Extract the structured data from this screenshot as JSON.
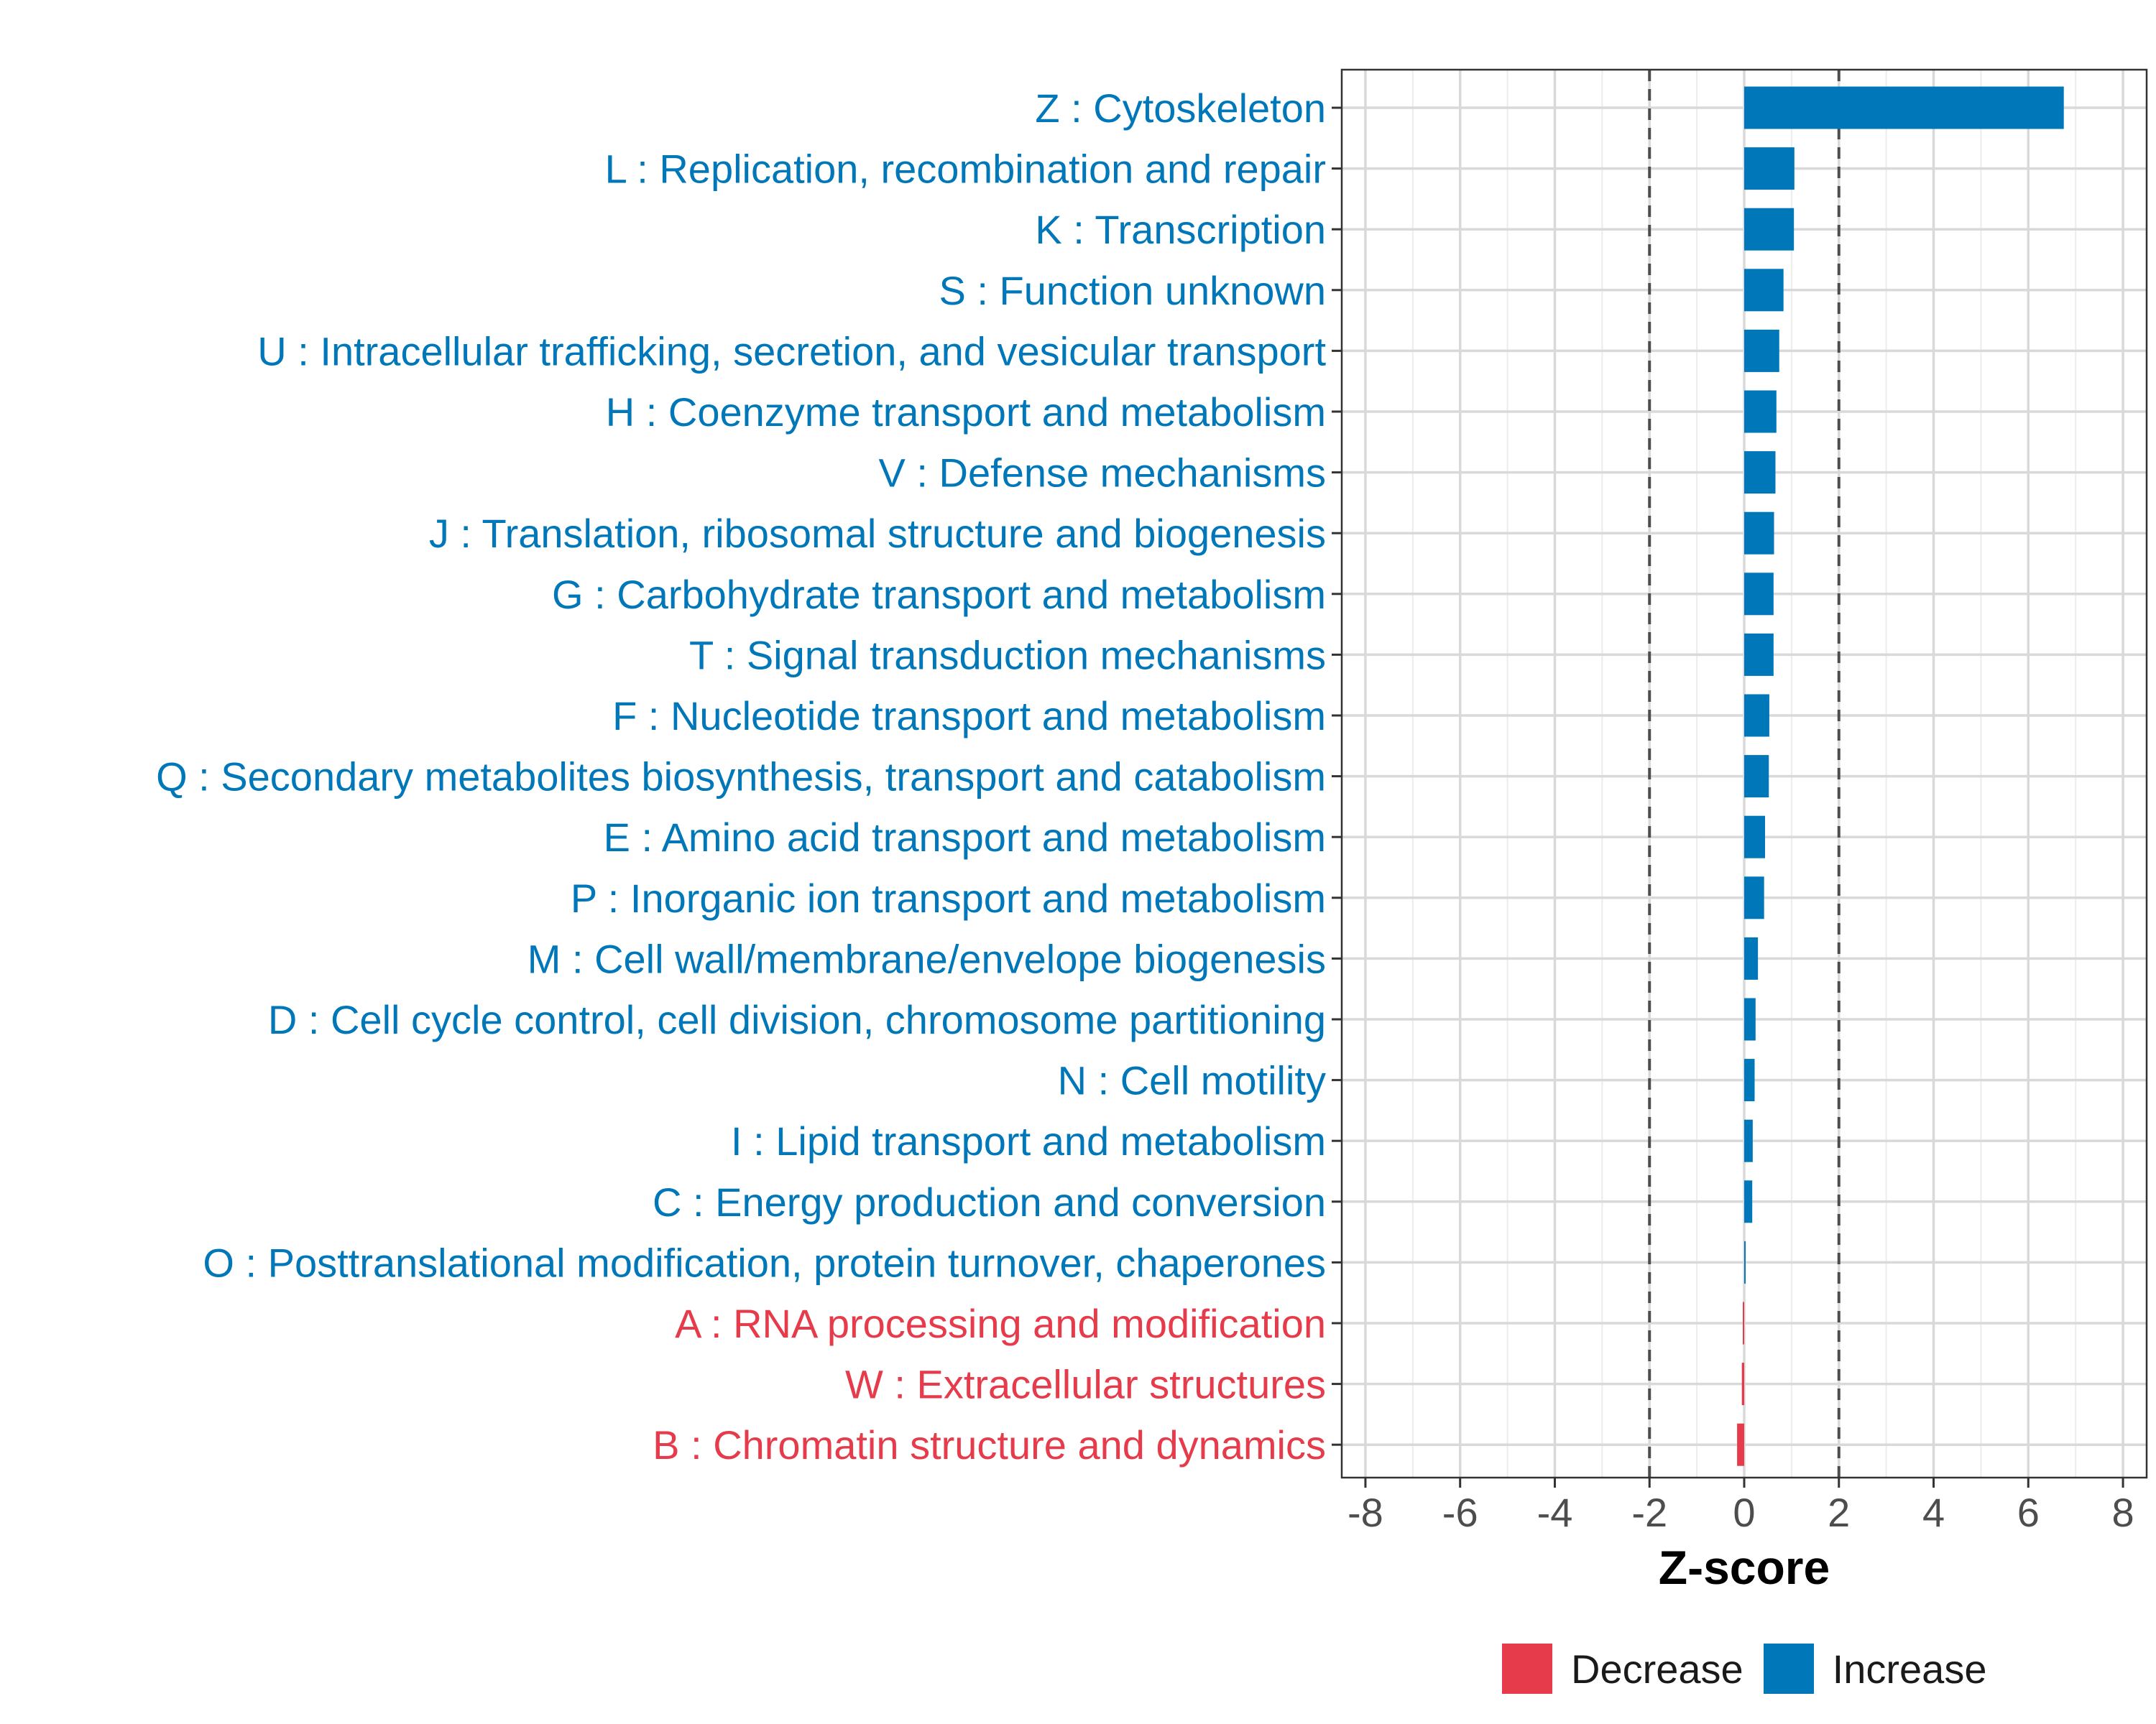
{
  "chart_data": {
    "type": "bar",
    "orientation": "horizontal",
    "xlabel": "Z-score",
    "xlim": [
      -8.5,
      8.5
    ],
    "x_ticks": [
      -8,
      -6,
      -4,
      -2,
      0,
      2,
      4,
      6,
      8
    ],
    "x_tick_labels": [
      "-8",
      "-6",
      "-4",
      "-2",
      "0",
      "2",
      "4",
      "6",
      "8"
    ],
    "threshold_lines": [
      -2,
      2
    ],
    "grid": true,
    "legend_position": "bottom",
    "colors": {
      "Decrease": "#e63b4a",
      "Increase": "#0077b8"
    },
    "categories": [
      "Z : Cytoskeleton",
      "L : Replication, recombination and repair",
      "K : Transcription",
      "S : Function unknown",
      "U : Intracellular trafficking, secretion, and vesicular transport",
      "H : Coenzyme transport and metabolism",
      "V : Defense mechanisms",
      "J : Translation, ribosomal structure and biogenesis",
      "G : Carbohydrate transport and metabolism",
      "T : Signal transduction mechanisms",
      "F : Nucleotide transport and metabolism",
      "Q : Secondary metabolites biosynthesis, transport and catabolism",
      "E : Amino acid transport and metabolism",
      "P : Inorganic ion transport and metabolism",
      "M : Cell wall/membrane/envelope biogenesis",
      "D : Cell cycle control, cell division, chromosome partitioning",
      "N : Cell motility",
      "I : Lipid transport and metabolism",
      "C : Energy production and conversion",
      "O : Posttranslational modification, protein turnover, chaperones",
      "A : RNA processing and modification",
      "W : Extracellular structures",
      "B : Chromatin structure and dynamics"
    ],
    "values": [
      6.75,
      1.06,
      1.05,
      0.83,
      0.74,
      0.68,
      0.66,
      0.63,
      0.62,
      0.62,
      0.53,
      0.52,
      0.44,
      0.42,
      0.29,
      0.24,
      0.22,
      0.18,
      0.17,
      0.03,
      -0.02,
      -0.05,
      -0.15
    ],
    "direction": [
      "Increase",
      "Increase",
      "Increase",
      "Increase",
      "Increase",
      "Increase",
      "Increase",
      "Increase",
      "Increase",
      "Increase",
      "Increase",
      "Increase",
      "Increase",
      "Increase",
      "Increase",
      "Increase",
      "Increase",
      "Increase",
      "Increase",
      "Increase",
      "Decrease",
      "Decrease",
      "Decrease"
    ]
  },
  "legend": {
    "items": [
      {
        "label": "Decrease",
        "color": "#e63b4a"
      },
      {
        "label": "Increase",
        "color": "#0077b8"
      }
    ]
  }
}
